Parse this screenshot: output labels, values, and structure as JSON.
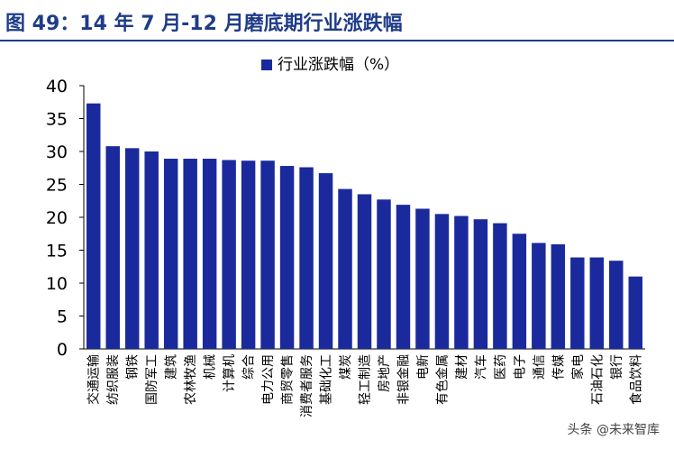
{
  "title": "图 49：14 年 7 月-12 月磨底期行业涨跌幅",
  "watermark": "头条 @未来智库",
  "colors": {
    "bar": "#1a2a9c",
    "title": "#1f3c88"
  },
  "chart_data": {
    "type": "bar",
    "title": "",
    "xlabel": "",
    "ylabel": "",
    "ylim": [
      0,
      40
    ],
    "yticks": [
      0,
      5,
      10,
      15,
      20,
      25,
      30,
      35,
      40
    ],
    "legend_position": "top-center",
    "categories": [
      "交通运输",
      "纺织服装",
      "钢铁",
      "国防军工",
      "建筑",
      "农林牧渔",
      "机械",
      "计算机",
      "综合",
      "电力公用",
      "商贸零售",
      "消费者服务",
      "基础化工",
      "煤炭",
      "轻工制造",
      "房地产",
      "非银金融",
      "电新",
      "有色金属",
      "建材",
      "汽车",
      "医药",
      "电子",
      "通信",
      "传媒",
      "家电",
      "石油石化",
      "银行",
      "食品饮料"
    ],
    "series": [
      {
        "name": "行业涨跌幅（%）",
        "values": [
          37.3,
          30.8,
          30.5,
          30.0,
          28.9,
          28.9,
          28.9,
          28.7,
          28.6,
          28.6,
          27.8,
          27.6,
          26.7,
          24.3,
          23.5,
          22.7,
          21.9,
          21.3,
          20.5,
          20.2,
          19.7,
          19.1,
          17.5,
          16.1,
          15.9,
          13.9,
          13.9,
          13.4,
          11.0
        ]
      }
    ]
  }
}
